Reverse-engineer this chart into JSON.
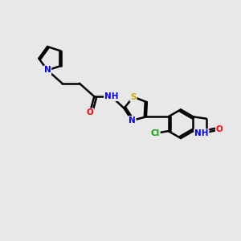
{
  "bg_color": "#e8e8e8",
  "bond_color": "#000000",
  "bond_width": 1.8,
  "atom_colors": {
    "N": "#0000ff",
    "O": "#ff0000",
    "S": "#ccaa00",
    "Cl": "#00aa00",
    "NH": "#0000ff",
    "H": "#888888"
  },
  "font_size": 7.5,
  "fig_width": 3.0,
  "fig_height": 3.0,
  "dpi": 100
}
